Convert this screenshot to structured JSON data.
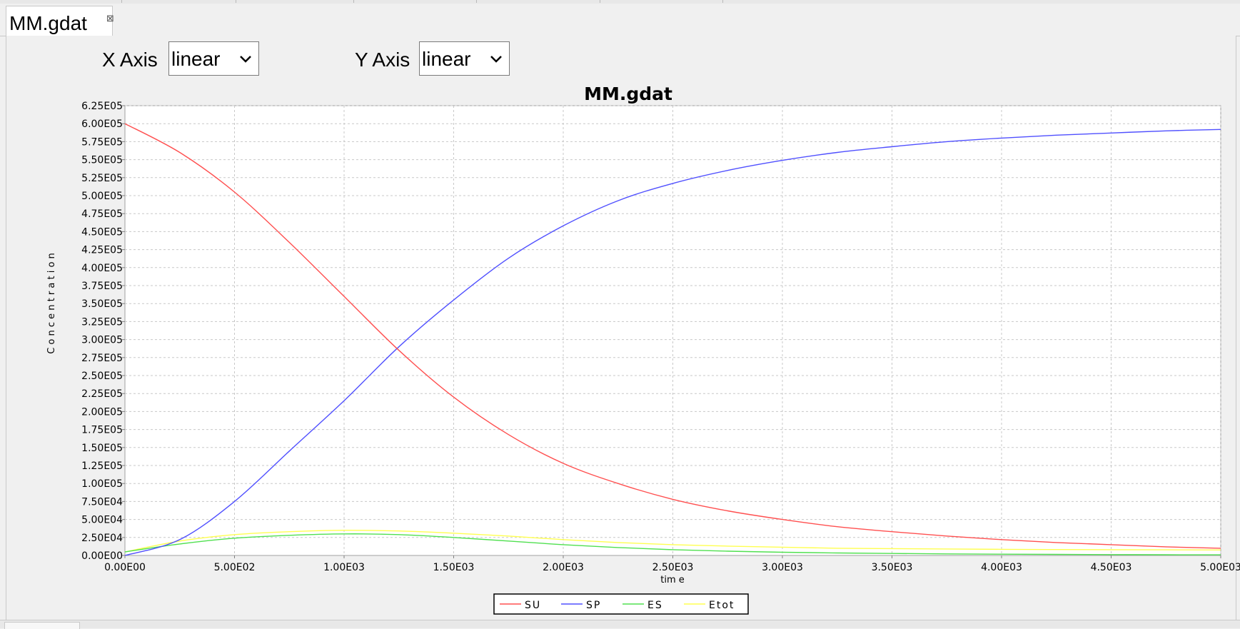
{
  "tab": {
    "title": "MM.gdat",
    "close_glyph": "⊠"
  },
  "controls": {
    "x_axis_label": "X Axis",
    "x_axis_value": "linear",
    "y_axis_label": "Y Axis",
    "y_axis_value": "linear"
  },
  "chart_data": {
    "type": "line",
    "title": "MM.gdat",
    "xlabel": "tim e",
    "ylabel": "C o n c e n t r a t i o n",
    "xlim": [
      0,
      5000
    ],
    "ylim": [
      0,
      625000
    ],
    "x_ticks": [
      0,
      500,
      1000,
      1500,
      2000,
      2500,
      3000,
      3500,
      4000,
      4500,
      5000
    ],
    "x_tick_labels": [
      "0.00E00",
      "5.00E02",
      "1.00E03",
      "1.50E03",
      "2.00E03",
      "2.50E03",
      "3.00E03",
      "3.50E03",
      "4.00E03",
      "4.50E03",
      "5.00E03"
    ],
    "y_ticks": [
      0,
      25000,
      50000,
      75000,
      100000,
      125000,
      150000,
      175000,
      200000,
      225000,
      250000,
      275000,
      300000,
      325000,
      350000,
      375000,
      400000,
      425000,
      450000,
      475000,
      500000,
      525000,
      550000,
      575000,
      600000,
      625000
    ],
    "y_tick_labels": [
      "0.00E00",
      "2.50E04",
      "5.00E04",
      "7.50E04",
      "1.00E05",
      "1.25E05",
      "1.50E05",
      "1.75E05",
      "2.00E05",
      "2.25E05",
      "2.50E05",
      "2.75E05",
      "3.00E05",
      "3.25E05",
      "3.50E05",
      "3.75E05",
      "4.00E05",
      "4.25E05",
      "4.50E05",
      "4.75E05",
      "5.00E05",
      "5.25E05",
      "5.50E05",
      "5.75E05",
      "6.00E05",
      "6.25E05"
    ],
    "grid": true,
    "legend_position": "bottom-center",
    "x": [
      0,
      250,
      500,
      750,
      1000,
      1250,
      1500,
      1750,
      2000,
      2250,
      2500,
      2750,
      3000,
      3250,
      3500,
      3750,
      4000,
      4250,
      4500,
      4750,
      5000
    ],
    "series": [
      {
        "name": "SU",
        "color": "#ff5050",
        "values": [
          600000,
          560000,
          505000,
          435000,
          360000,
          285000,
          220000,
          168000,
          128000,
          100000,
          78000,
          62000,
          50000,
          40000,
          33000,
          27000,
          22000,
          18000,
          15000,
          12000,
          10000
        ]
      },
      {
        "name": "SP",
        "color": "#5050ff",
        "values": [
          0,
          22000,
          75000,
          145000,
          215000,
          290000,
          355000,
          413000,
          458000,
          493000,
          517000,
          535000,
          549000,
          560000,
          568000,
          575000,
          580000,
          584000,
          587000,
          590000,
          592000
        ]
      },
      {
        "name": "ES",
        "color": "#50e050",
        "values": [
          5000,
          16000,
          24000,
          28000,
          30000,
          29000,
          25000,
          20000,
          15000,
          11000,
          8000,
          6000,
          4500,
          3500,
          2800,
          2200,
          1800,
          1500,
          1200,
          1000,
          900
        ]
      },
      {
        "name": "Etot",
        "color": "#ffff50",
        "values": [
          5000,
          20000,
          29000,
          33000,
          35000,
          34000,
          31000,
          27000,
          22000,
          18000,
          15000,
          13000,
          11500,
          10000,
          9500,
          9000,
          8500,
          8200,
          8000,
          7800,
          7600
        ]
      }
    ]
  }
}
